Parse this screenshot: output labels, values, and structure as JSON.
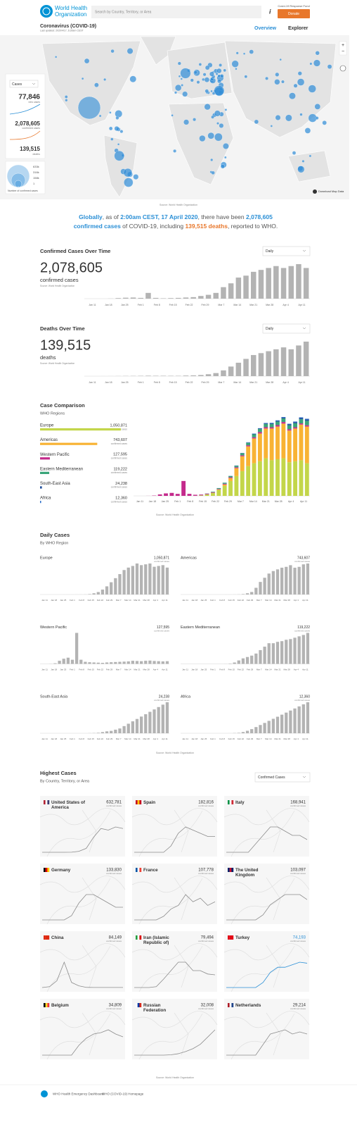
{
  "header": {
    "logo": [
      "World Health",
      "Organization"
    ],
    "search_placeholder": "Search by Country, Territory, or Area",
    "fund": "Covid-19 Response Fund",
    "donate": "Donate",
    "title": "Coronavirus (COVID-19)",
    "updated": "Last updated: 2020/4/17, 6:30am CEST",
    "tabs": [
      "Overview",
      "Explorer"
    ]
  },
  "map": {
    "metric": "Cases",
    "stats": [
      {
        "value": "77,846",
        "label": "new cases"
      },
      {
        "value": "2,078,605",
        "label": "confirmed cases"
      },
      {
        "value": "139,515",
        "label": "deaths"
      }
    ],
    "bubble_legend": [
      "633k",
      "316k",
      "158k",
      "1"
    ],
    "bubble_caption": "Number of confirmed cases",
    "source": "Source: World Health Organization",
    "download": "Download Map Data"
  },
  "headline": [
    "Globally",
    ", as of ",
    "2:00am CEST, 17 April 2020",
    ", there have been ",
    "2,078,605",
    "confirmed cases",
    " of COVID-19, including ",
    "139,515 deaths",
    ", reported to WHO."
  ],
  "chart_data": [
    {
      "type": "bar",
      "title": "Confirmed Cases Over Time",
      "selector": "Daily",
      "total": "2,078,605",
      "total_label": "confirmed cases",
      "source": "Source: World Health Organization",
      "color": "#b3b3b3",
      "x_labels": [
        "Jan 11",
        "Jan 18",
        "Jan 25",
        "Feb 1",
        "Feb 8",
        "Feb 15",
        "Feb 22",
        "Feb 29",
        "Mar 7",
        "Mar 14",
        "Mar 21",
        "Mar 28",
        "Apr 4",
        "Apr 11"
      ],
      "values": [
        0,
        0,
        50,
        300,
        1500,
        2500,
        3000,
        2000,
        15000,
        2000,
        1000,
        1500,
        2000,
        3000,
        4000,
        7000,
        10000,
        15000,
        30000,
        40000,
        55000,
        60000,
        70000,
        75000,
        80000,
        85000,
        80000,
        85000,
        90000,
        80000
      ]
    },
    {
      "type": "bar",
      "title": "Deaths Over Time",
      "selector": "Daily",
      "total": "139,515",
      "total_label": "deaths",
      "source": "Source: World Health Organization",
      "color": "#b3b3b3",
      "x_labels": [
        "Jan 11",
        "Jan 18",
        "Jan 25",
        "Feb 1",
        "Feb 8",
        "Feb 15",
        "Feb 22",
        "Feb 29",
        "Mar 7",
        "Mar 14",
        "Mar 21",
        "Mar 28",
        "Apr 4",
        "Apr 11"
      ],
      "values": [
        0,
        0,
        2,
        10,
        30,
        50,
        60,
        80,
        120,
        100,
        100,
        90,
        80,
        150,
        200,
        300,
        500,
        800,
        1500,
        2500,
        3500,
        4500,
        5500,
        6000,
        6500,
        7000,
        7500,
        7000,
        8000,
        9000
      ]
    },
    {
      "type": "stacked_bar",
      "title": "Case Comparison",
      "subtitle": "WHO Regions",
      "total_label": "confirmed cases",
      "source": "Source: World Health Organization",
      "x_labels": [
        "Jan 11",
        "Jan 18",
        "Jan 25",
        "Feb 1",
        "Feb 8",
        "Feb 15",
        "Feb 22",
        "Feb 29",
        "Mar 7",
        "Mar 14",
        "Mar 21",
        "Mar 28",
        "Apr 4",
        "Apr 11"
      ],
      "series": [
        {
          "name": "Europe",
          "color": "#c3d64a",
          "total": 1050871,
          "total_text": "1,050,871",
          "values": [
            0,
            0,
            0,
            0,
            5,
            10,
            20,
            20,
            30,
            40,
            100,
            500,
            1500,
            3000,
            6000,
            10000,
            15000,
            20000,
            25000,
            30000,
            33000,
            35000,
            38000,
            36000,
            37000,
            38000,
            34000,
            35000,
            36000,
            33000
          ]
        },
        {
          "name": "Americas",
          "color": "#f8b334",
          "total": 743607,
          "total_text": "743,607",
          "values": [
            0,
            0,
            0,
            0,
            1,
            2,
            3,
            5,
            5,
            5,
            10,
            20,
            50,
            150,
            500,
            1500,
            3000,
            8000,
            15000,
            20000,
            25000,
            28000,
            30000,
            32000,
            33000,
            35000,
            32000,
            33000,
            36000,
            37000
          ]
        },
        {
          "name": "Western Pacific",
          "color": "#c42a8c",
          "total": 127595,
          "total_text": "127,595",
          "values": [
            0,
            0,
            50,
            300,
            1500,
            2500,
            3000,
            2000,
            15000,
            2000,
            1000,
            800,
            700,
            600,
            500,
            700,
            800,
            900,
            1000,
            1100,
            1200,
            1500,
            1400,
            1300,
            1500,
            1600,
            1400,
            1300,
            1200,
            1300
          ]
        },
        {
          "name": "Eastern Mediterranean",
          "color": "#3aa57a",
          "total": 119222,
          "total_text": "119,222",
          "values": [
            0,
            0,
            0,
            0,
            0,
            0,
            0,
            0,
            0,
            1,
            10,
            50,
            200,
            500,
            800,
            1000,
            1200,
            1500,
            2000,
            2500,
            3000,
            3000,
            3200,
            3300,
            3500,
            3600,
            3800,
            4000,
            4200,
            4500
          ]
        },
        {
          "name": "South-East Asia",
          "color": "#1f4e9c",
          "total": 24238,
          "total_text": "24,238",
          "values": [
            0,
            0,
            0,
            0,
            0,
            0,
            0,
            0,
            0,
            0,
            0,
            5,
            10,
            20,
            50,
            80,
            100,
            150,
            200,
            300,
            400,
            500,
            600,
            700,
            800,
            900,
            1000,
            1100,
            1200,
            1300
          ]
        },
        {
          "name": "Africa",
          "color": "#2b6fc9",
          "total": 12360,
          "total_text": "12,360",
          "values": [
            0,
            0,
            0,
            0,
            0,
            0,
            0,
            0,
            0,
            0,
            0,
            1,
            5,
            10,
            30,
            60,
            100,
            150,
            200,
            250,
            300,
            350,
            400,
            450,
            500,
            550,
            600,
            650,
            700,
            750
          ]
        }
      ]
    }
  ],
  "daily_cases": {
    "title": "Daily Cases",
    "subtitle": "By WHO Region",
    "source": "Source: World Health Organization"
  },
  "countries": {
    "title": "Highest Cases",
    "subtitle": "By Country, Territory, or Area",
    "selector": "Confirmed Cases",
    "unit": "confirmed cases",
    "source": "Source: World Health Organization",
    "items": [
      {
        "name": "United States of America",
        "total": "632,781",
        "color": "#8c8c8c",
        "values": [
          0,
          0,
          0,
          0,
          100,
          1200,
          5000,
          19000,
          30000,
          28000,
          32000,
          30000
        ]
      },
      {
        "name": "Spain",
        "total": "182,816",
        "color": "#8c8c8c",
        "values": [
          0,
          0,
          0,
          0,
          0,
          2000,
          6000,
          8000,
          7000,
          6000,
          5000,
          5000
        ]
      },
      {
        "name": "Italy",
        "total": "168,941",
        "color": "#8c8c8c",
        "values": [
          0,
          0,
          0,
          0,
          2000,
          4000,
          6000,
          6000,
          5000,
          4000,
          4000,
          3000
        ]
      },
      {
        "name": "Germany",
        "total": "133,830",
        "color": "#8c8c8c",
        "values": [
          0,
          0,
          0,
          0,
          1000,
          4000,
          6000,
          6000,
          5000,
          4000,
          3000,
          3000
        ]
      },
      {
        "name": "France",
        "total": "107,778",
        "color": "#8c8c8c",
        "values": [
          0,
          0,
          0,
          0,
          1000,
          3000,
          4000,
          7000,
          5000,
          6000,
          4000,
          5000
        ]
      },
      {
        "name": "The United Kingdom",
        "total": "103,097",
        "color": "#8c8c8c",
        "values": [
          0,
          0,
          0,
          0,
          0,
          1000,
          3000,
          4000,
          5000,
          5000,
          5000,
          4000
        ]
      },
      {
        "name": "China",
        "total": "84,149",
        "color": "#8c8c8c",
        "values": [
          0,
          500,
          4000,
          15000,
          3000,
          1000,
          100,
          50,
          50,
          50,
          50,
          50
        ]
      },
      {
        "name": "Iran (Islamic Republic of)",
        "total": "79,494",
        "color": "#8c8c8c",
        "values": [
          0,
          0,
          0,
          100,
          1000,
          2000,
          3000,
          3000,
          2000,
          2000,
          1600,
          1500
        ]
      },
      {
        "name": "Turkey",
        "total": "74,193",
        "color": "#2a8fd6",
        "values": [
          0,
          0,
          0,
          0,
          0,
          1000,
          3000,
          4000,
          4000,
          4500,
          5000,
          4800
        ]
      },
      {
        "name": "Belgium",
        "total": "34,809",
        "color": "#8c8c8c",
        "values": [
          0,
          0,
          0,
          0,
          0,
          700,
          1200,
          1500,
          1600,
          1800,
          1500,
          1300
        ]
      },
      {
        "name": "Russian Federation",
        "total": "32,008",
        "color": "#8c8c8c",
        "values": [
          0,
          0,
          0,
          0,
          0,
          50,
          200,
          500,
          900,
          1500,
          2500,
          3500
        ]
      },
      {
        "name": "Netherlands",
        "total": "29,214",
        "color": "#8c8c8c",
        "values": [
          0,
          0,
          0,
          0,
          0,
          500,
          1000,
          1100,
          1200,
          1000,
          1100,
          1000
        ]
      }
    ]
  },
  "footer": [
    "WHO Health Emergency Dashboard",
    "WHO (COVID-19) Homepage"
  ]
}
